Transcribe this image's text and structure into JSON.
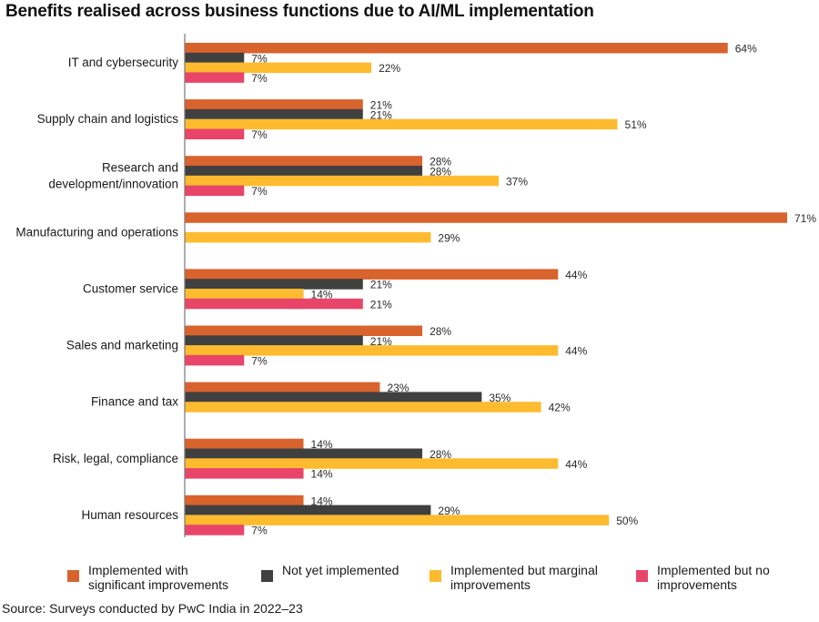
{
  "chart_data": {
    "type": "bar",
    "orientation": "horizontal",
    "title": "Benefits realised across business functions due to AI/ML implementation",
    "xlabel": "",
    "ylabel": "",
    "xlim": [
      0,
      75
    ],
    "grid": false,
    "legend_position": "bottom",
    "value_suffix": "%",
    "categories": [
      "IT and cybersecurity",
      "Supply chain and logistics",
      "Research and development/innovation",
      "Manufacturing and operations",
      "Customer service",
      "Sales and marketing",
      "Finance and tax",
      "Risk, legal, compliance",
      "Human resources"
    ],
    "category_lines": [
      [
        "IT and cybersecurity"
      ],
      [
        "Supply chain and logistics"
      ],
      [
        "Research and",
        "development/innovation"
      ],
      [
        "Manufacturing and operations"
      ],
      [
        "Customer service"
      ],
      [
        "Sales and marketing"
      ],
      [
        "Finance and tax"
      ],
      [
        "Risk, legal, compliance"
      ],
      [
        "Human resources"
      ]
    ],
    "series": [
      {
        "name": "Implemented with significant improvements",
        "color": "#D8632D",
        "values": [
          64,
          21,
          28,
          71,
          44,
          28,
          23,
          14,
          14
        ]
      },
      {
        "name": "Not yet implemented",
        "color": "#404041",
        "values": [
          7,
          21,
          28,
          null,
          21,
          21,
          35,
          28,
          29
        ]
      },
      {
        "name": "Implemented but marginal improvements",
        "color": "#FEBB30",
        "values": [
          22,
          51,
          37,
          29,
          14,
          44,
          42,
          44,
          50
        ]
      },
      {
        "name": "Implemented but no improvements",
        "color": "#E9446A",
        "values": [
          7,
          7,
          7,
          null,
          21,
          7,
          null,
          14,
          7
        ]
      }
    ]
  },
  "legend": [
    {
      "label": "Implemented with\nsignificant improvements",
      "color": "#D8632D"
    },
    {
      "label": "Not yet implemented",
      "color": "#404041"
    },
    {
      "label": "Implemented but marginal\nimprovements",
      "color": "#FEBB30"
    },
    {
      "label": "Implemented but no\nimprovements",
      "color": "#E9446A"
    }
  ],
  "source": "Source: Surveys conducted by PwC India in 2022–23"
}
